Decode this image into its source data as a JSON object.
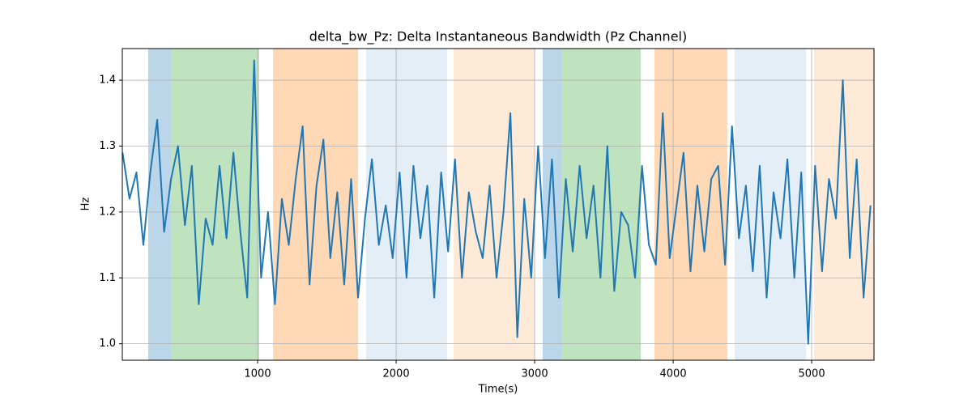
{
  "chart_data": {
    "type": "line",
    "title": "delta_bw_Pz: Delta Instantaneous Bandwidth (Pz Channel)",
    "xlabel": "Time(s)",
    "ylabel": "Hz",
    "xlim": [
      23,
      5450
    ],
    "ylim": [
      0.975,
      1.448
    ],
    "xticks": [
      1000,
      2000,
      3000,
      4000,
      5000
    ],
    "yticks": [
      {
        "value": 1,
        "label": "1.0"
      },
      1.1,
      1.2,
      1.3,
      1.4
    ],
    "grid": true,
    "spans": [
      {
        "x0": 210,
        "x1": 374,
        "color": "#1f77b4",
        "opacity": 0.3
      },
      {
        "x0": 374,
        "x1": 1011,
        "color": "#2ca02c",
        "opacity": 0.3
      },
      {
        "x0": 1111,
        "x1": 1725,
        "color": "#ff7f0e",
        "opacity": 0.3
      },
      {
        "x0": 1783,
        "x1": 2368,
        "color": "#1f77b4",
        "opacity": 0.12
      },
      {
        "x0": 2415,
        "x1": 3000,
        "color": "#ff7f0e",
        "opacity": 0.16
      },
      {
        "x0": 3058,
        "x1": 3193,
        "color": "#1f77b4",
        "opacity": 0.3
      },
      {
        "x0": 3193,
        "x1": 3766,
        "color": "#2ca02c",
        "opacity": 0.3
      },
      {
        "x0": 3865,
        "x1": 4391,
        "color": "#ff7f0e",
        "opacity": 0.3
      },
      {
        "x0": 4444,
        "x1": 4959,
        "color": "#1f77b4",
        "opacity": 0.12
      },
      {
        "x0": 5017,
        "x1": 5450,
        "color": "#ff7f0e",
        "opacity": 0.16
      }
    ],
    "x": [
      25,
      75,
      125,
      175,
      225,
      275,
      325,
      375,
      425,
      475,
      525,
      575,
      625,
      675,
      725,
      775,
      825,
      875,
      925,
      975,
      1025,
      1075,
      1125,
      1175,
      1225,
      1275,
      1325,
      1375,
      1425,
      1475,
      1525,
      1575,
      1625,
      1675,
      1725,
      1775,
      1825,
      1875,
      1925,
      1975,
      2025,
      2075,
      2125,
      2175,
      2225,
      2275,
      2325,
      2375,
      2425,
      2475,
      2525,
      2575,
      2625,
      2675,
      2725,
      2775,
      2825,
      2875,
      2925,
      2975,
      3025,
      3075,
      3125,
      3175,
      3225,
      3275,
      3325,
      3375,
      3425,
      3475,
      3525,
      3575,
      3625,
      3675,
      3725,
      3775,
      3825,
      3875,
      3925,
      3975,
      4025,
      4075,
      4125,
      4175,
      4225,
      4275,
      4325,
      4375,
      4425,
      4475,
      4525,
      4575,
      4625,
      4675,
      4725,
      4775,
      4825,
      4875,
      4925,
      4975,
      5025,
      5075,
      5125,
      5175,
      5225,
      5275,
      5325,
      5375,
      5425
    ],
    "series": [
      {
        "color": "#1f77b4",
        "values": [
          1.29,
          1.22,
          1.26,
          1.15,
          1.26,
          1.34,
          1.17,
          1.25,
          1.3,
          1.18,
          1.27,
          1.06,
          1.19,
          1.15,
          1.27,
          1.16,
          1.29,
          1.17,
          1.07,
          1.43,
          1.1,
          1.2,
          1.06,
          1.22,
          1.15,
          1.25,
          1.33,
          1.09,
          1.24,
          1.31,
          1.13,
          1.23,
          1.09,
          1.25,
          1.07,
          1.19,
          1.28,
          1.15,
          1.21,
          1.13,
          1.26,
          1.1,
          1.27,
          1.16,
          1.24,
          1.07,
          1.26,
          1.14,
          1.28,
          1.1,
          1.23,
          1.17,
          1.13,
          1.24,
          1.1,
          1.2,
          1.35,
          1.01,
          1.22,
          1.1,
          1.3,
          1.13,
          1.28,
          1.07,
          1.25,
          1.14,
          1.27,
          1.16,
          1.24,
          1.1,
          1.3,
          1.08,
          1.2,
          1.18,
          1.1,
          1.27,
          1.15,
          1.12,
          1.35,
          1.13,
          1.21,
          1.29,
          1.11,
          1.24,
          1.14,
          1.25,
          1.27,
          1.12,
          1.33,
          1.16,
          1.24,
          1.11,
          1.27,
          1.07,
          1.23,
          1.16,
          1.28,
          1.1,
          1.26,
          1.0,
          1.27,
          1.11,
          1.25,
          1.19,
          1.4,
          1.13,
          1.28,
          1.07,
          1.21
        ]
      }
    ]
  }
}
